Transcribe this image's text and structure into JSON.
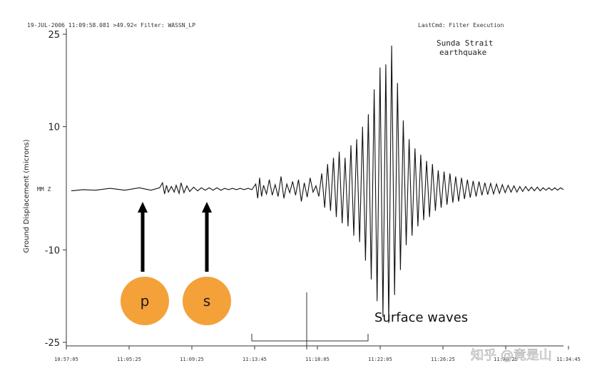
{
  "header": {
    "info": "19-JUL-2006 11:09:58.081  >49.92<   Filter: WASSN_LP",
    "last_cmd": "LastCmd: Filter Execution"
  },
  "chart_data": {
    "type": "line",
    "title": "Sunda Strait earthquake",
    "title_lines": [
      "Sunda Strait",
      "earthquake"
    ],
    "ylabel": "Ground Displacement (microns)",
    "xlabel": "",
    "ylim": [
      -25,
      25
    ],
    "y_ticks": [
      25,
      10,
      -10,
      -25
    ],
    "y_tick_labels": [
      "25",
      "10",
      "-10",
      "-25"
    ],
    "zero_marker_label": "MM Z",
    "x_ticks": [
      "10:57:05",
      "11:05:25",
      "11:09:25",
      "11:13:45",
      "11:18:05",
      "11:22:05",
      "11:26:25",
      "11:30:25",
      "11:34:45"
    ],
    "grid": false,
    "series": [
      {
        "values": [
          [
            0,
            -0.3
          ],
          [
            12,
            -0.1
          ],
          [
            25,
            -0.2
          ],
          [
            40,
            0.1
          ],
          [
            55,
            -0.2
          ],
          [
            70,
            0.2
          ],
          [
            82,
            -0.2
          ],
          [
            91,
            0.2
          ],
          [
            94,
            1.0
          ],
          [
            96,
            -0.8
          ],
          [
            98,
            0.6
          ],
          [
            100,
            -0.5
          ],
          [
            103,
            0.4
          ],
          [
            106,
            -0.5
          ],
          [
            108,
            0.6
          ],
          [
            111,
            -0.7
          ],
          [
            113,
            1.0
          ],
          [
            116,
            -0.6
          ],
          [
            119,
            0.5
          ],
          [
            122,
            -0.4
          ],
          [
            126,
            0.3
          ],
          [
            130,
            -0.3
          ],
          [
            134,
            0.2
          ],
          [
            138,
            -0.2
          ],
          [
            142,
            0.2
          ],
          [
            146,
            -0.2
          ],
          [
            150,
            0.2
          ],
          [
            154,
            -0.2
          ],
          [
            158,
            0.1
          ],
          [
            162,
            -0.1
          ],
          [
            166,
            0.1
          ],
          [
            170,
            -0.1
          ],
          [
            174,
            0.1
          ],
          [
            178,
            -0.1
          ],
          [
            182,
            0.1
          ],
          [
            186,
            -0.1
          ],
          [
            190,
            0.8
          ],
          [
            192,
            -1.5
          ],
          [
            194,
            1.8
          ],
          [
            196,
            -1.2
          ],
          [
            198,
            0.6
          ],
          [
            201,
            -0.8
          ],
          [
            204,
            1.5
          ],
          [
            207,
            -1.0
          ],
          [
            210,
            0.7
          ],
          [
            213,
            -1.2
          ],
          [
            216,
            2.0
          ],
          [
            219,
            -1.5
          ],
          [
            222,
            0.8
          ],
          [
            225,
            -0.6
          ],
          [
            228,
            1.2
          ],
          [
            231,
            -1.0
          ],
          [
            234,
            1.5
          ],
          [
            237,
            -2.0
          ],
          [
            240,
            1.0
          ],
          [
            243,
            -1.3
          ],
          [
            246,
            1.8
          ],
          [
            249,
            -0.5
          ],
          [
            252,
            0.5
          ],
          [
            255,
            -1.2
          ],
          [
            258,
            2.5
          ],
          [
            261,
            -3.0
          ],
          [
            264,
            4.0
          ],
          [
            267,
            -3.5
          ],
          [
            270,
            5.0
          ],
          [
            273,
            -4.5
          ],
          [
            276,
            6.0
          ],
          [
            279,
            -5.5
          ],
          [
            282,
            5.0
          ],
          [
            285,
            -6.0
          ],
          [
            288,
            7.0
          ],
          [
            291,
            -7.5
          ],
          [
            294,
            8.0
          ],
          [
            297,
            -8.5
          ],
          [
            300,
            10.0
          ],
          [
            303,
            -11.5
          ],
          [
            306,
            12.0
          ],
          [
            309,
            -14.5
          ],
          [
            312,
            16.0
          ],
          [
            315,
            -18.0
          ],
          [
            318,
            19.5
          ],
          [
            321,
            -20.5
          ],
          [
            324,
            20.0
          ],
          [
            327,
            -21.5
          ],
          [
            330,
            23.0
          ],
          [
            333,
            -17.0
          ],
          [
            336,
            17.0
          ],
          [
            339,
            -13.0
          ],
          [
            342,
            11.0
          ],
          [
            345,
            -9.0
          ],
          [
            348,
            8.0
          ],
          [
            351,
            -7.5
          ],
          [
            354,
            6.5
          ],
          [
            357,
            -6.0
          ],
          [
            360,
            5.5
          ],
          [
            363,
            -5.0
          ],
          [
            366,
            4.5
          ],
          [
            369,
            -4.5
          ],
          [
            372,
            4.0
          ],
          [
            375,
            -3.5
          ],
          [
            378,
            3.0
          ],
          [
            381,
            -3.0
          ],
          [
            384,
            2.8
          ],
          [
            387,
            -2.5
          ],
          [
            390,
            2.5
          ],
          [
            393,
            -2.2
          ],
          [
            396,
            2.0
          ],
          [
            399,
            -2.0
          ],
          [
            402,
            1.8
          ],
          [
            405,
            -1.6
          ],
          [
            408,
            1.5
          ],
          [
            411,
            -1.4
          ],
          [
            414,
            1.3
          ],
          [
            417,
            -1.2
          ],
          [
            420,
            1.2
          ],
          [
            423,
            -1.0
          ],
          [
            426,
            1.0
          ],
          [
            429,
            -0.9
          ],
          [
            432,
            0.9
          ],
          [
            435,
            -0.8
          ],
          [
            438,
            0.8
          ],
          [
            441,
            -0.7
          ],
          [
            444,
            0.7
          ],
          [
            447,
            -0.6
          ],
          [
            450,
            0.6
          ],
          [
            453,
            -0.5
          ],
          [
            456,
            0.5
          ],
          [
            459,
            -0.5
          ],
          [
            462,
            0.4
          ],
          [
            465,
            -0.4
          ],
          [
            468,
            0.4
          ],
          [
            471,
            -0.3
          ],
          [
            474,
            0.3
          ],
          [
            477,
            -0.3
          ],
          [
            480,
            0.3
          ],
          [
            483,
            -0.3
          ],
          [
            486,
            0.2
          ],
          [
            489,
            -0.2
          ],
          [
            492,
            0.2
          ],
          [
            495,
            -0.2
          ],
          [
            498,
            0.2
          ],
          [
            501,
            -0.2
          ],
          [
            504,
            0.2
          ],
          [
            507,
            -0.1
          ]
        ]
      }
    ],
    "annotations": {
      "arrow_labels": [
        "p",
        "s"
      ],
      "surface_label": "Surface waves"
    },
    "colors": {
      "trace": "#111111",
      "axis": "#333333",
      "marker": "#f4a13a",
      "marker_text": "#1a1a1a"
    }
  },
  "watermark": "知乎 @竟是山"
}
